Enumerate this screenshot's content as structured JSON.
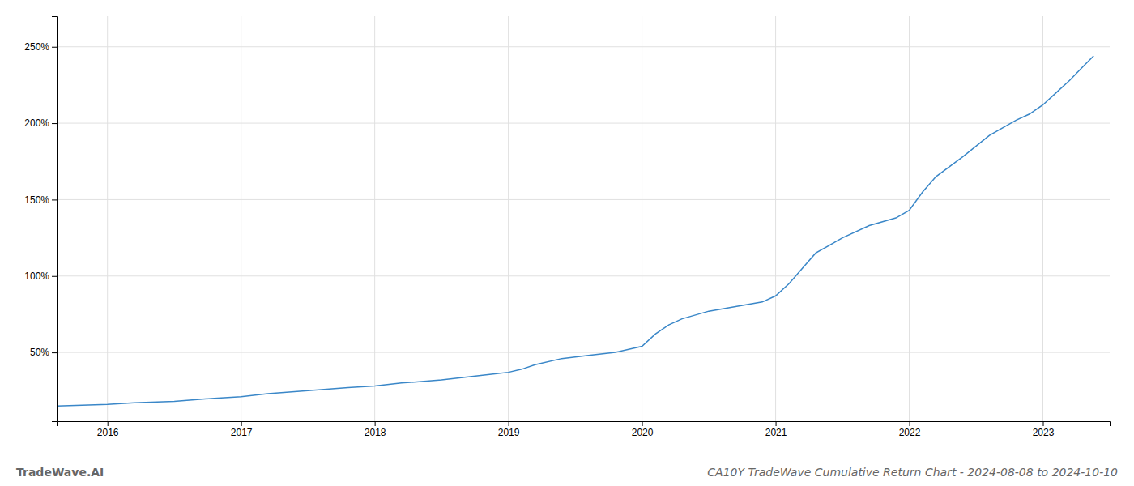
{
  "chart_data": {
    "type": "line",
    "title": "CA10Y TradeWave Cumulative Return Chart - 2024-08-08 to 2024-10-10",
    "annotations": [
      "TradeWave.AI"
    ],
    "color": "#3a87c8",
    "grid": true,
    "x": [
      2015.62,
      2016.0,
      2016.2,
      2016.5,
      2016.8,
      2017.0,
      2017.2,
      2017.5,
      2017.8,
      2018.0,
      2018.2,
      2018.5,
      2018.7,
      2018.9,
      2019.0,
      2019.1,
      2019.2,
      2019.4,
      2019.6,
      2019.8,
      2020.0,
      2020.1,
      2020.2,
      2020.3,
      2020.5,
      2020.7,
      2020.9,
      2021.0,
      2021.1,
      2021.2,
      2021.3,
      2021.5,
      2021.7,
      2021.9,
      2022.0,
      2022.1,
      2022.2,
      2022.4,
      2022.6,
      2022.8,
      2022.9,
      2023.0,
      2023.1,
      2023.2,
      2023.3,
      2023.38
    ],
    "values": [
      15,
      16,
      17,
      18,
      20,
      21,
      23,
      25,
      27,
      28,
      30,
      32,
      34,
      36,
      37,
      39,
      42,
      46,
      48,
      50,
      54,
      62,
      68,
      72,
      77,
      80,
      83,
      87,
      95,
      105,
      115,
      125,
      133,
      138,
      143,
      155,
      165,
      178,
      192,
      202,
      206,
      212,
      220,
      228,
      237,
      244
    ],
    "xlim": [
      2015.62,
      2023.5
    ],
    "xticks": [
      2016,
      2017,
      2018,
      2019,
      2020,
      2021,
      2022,
      2023
    ],
    "ylim": [
      5,
      270
    ],
    "yticks": [
      {
        "value": 50,
        "label": "50%"
      },
      {
        "value": 100,
        "label": "100%"
      },
      {
        "value": 150,
        "label": "150%"
      },
      {
        "value": 200,
        "label": "200%"
      },
      {
        "value": 250,
        "label": "250%"
      }
    ]
  }
}
